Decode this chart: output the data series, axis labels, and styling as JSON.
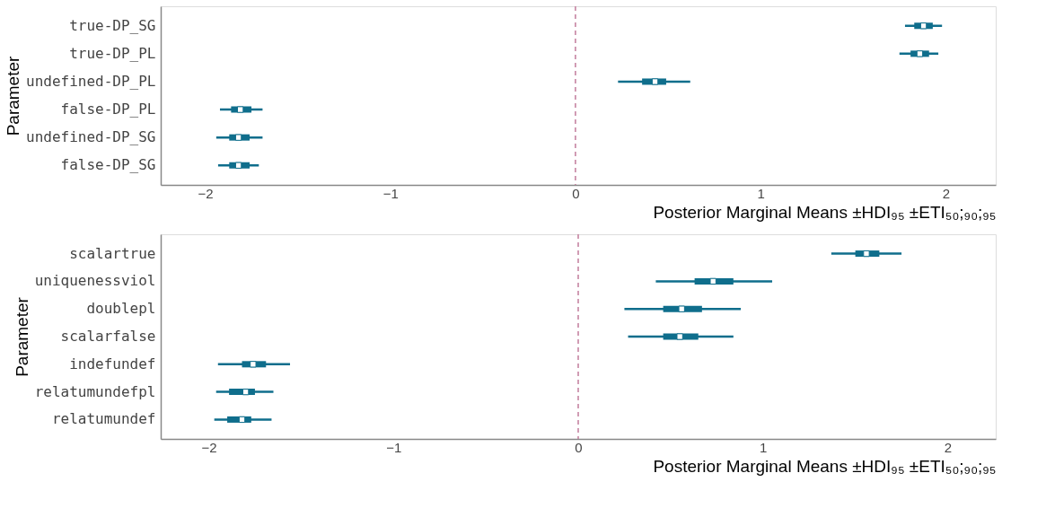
{
  "chart_data": [
    {
      "type": "box",
      "orientation": "horizontal",
      "ylabel": "Parameter",
      "xlabel": "Posterior Marginal Means ±HDI₉₅ ±ETI₅₀;₉₀;₉₅",
      "categories": [
        "true-DP_SG",
        "true-DP_PL",
        "undefined-DP_PL",
        "false-DP_PL",
        "undefined-DP_SG",
        "false-DP_SG"
      ],
      "color": "#0f6e8c",
      "grid": false,
      "xlim": [
        -2.24,
        2.27
      ],
      "xticks": [
        -2,
        -1,
        0,
        1,
        2
      ],
      "boxes": [
        {
          "low": 1.78,
          "q1": 1.83,
          "median": 1.88,
          "q3": 1.93,
          "high": 1.98
        },
        {
          "low": 1.75,
          "q1": 1.81,
          "median": 1.86,
          "q3": 1.91,
          "high": 1.96
        },
        {
          "low": 0.23,
          "q1": 0.36,
          "median": 0.43,
          "q3": 0.49,
          "high": 0.62
        },
        {
          "low": -1.92,
          "q1": -1.86,
          "median": -1.81,
          "q3": -1.75,
          "high": -1.69
        },
        {
          "low": -1.94,
          "q1": -1.87,
          "median": -1.82,
          "q3": -1.76,
          "high": -1.69
        },
        {
          "low": -1.93,
          "q1": -1.87,
          "median": -1.82,
          "q3": -1.76,
          "high": -1.71
        }
      ],
      "ref_lines": [
        {
          "axis": "x",
          "value": 0,
          "color": "#c27c9c",
          "line_style": "dashed"
        }
      ]
    },
    {
      "type": "box",
      "orientation": "horizontal",
      "ylabel": "Parameter",
      "xlabel": "Posterior Marginal Means ±HDI₉₅ ±ETI₅₀;₉₀;₉₅",
      "categories": [
        "scalartrue",
        "uniquenessviol",
        "doublepl",
        "scalarfalse",
        "indefundef",
        "relatumundefpl",
        "relatumundef"
      ],
      "color": "#0f6e8c",
      "grid": false,
      "xlim": [
        -2.26,
        2.26
      ],
      "xticks": [
        -2,
        -1,
        0,
        1,
        2
      ],
      "boxes": [
        {
          "low": 1.37,
          "q1": 1.5,
          "median": 1.56,
          "q3": 1.63,
          "high": 1.75
        },
        {
          "low": 0.42,
          "q1": 0.63,
          "median": 0.73,
          "q3": 0.84,
          "high": 1.05
        },
        {
          "low": 0.25,
          "q1": 0.46,
          "median": 0.56,
          "q3": 0.67,
          "high": 0.88
        },
        {
          "low": 0.27,
          "q1": 0.46,
          "median": 0.55,
          "q3": 0.65,
          "high": 0.84
        },
        {
          "low": -1.95,
          "q1": -1.82,
          "median": -1.76,
          "q3": -1.69,
          "high": -1.56
        },
        {
          "low": -1.96,
          "q1": -1.89,
          "median": -1.8,
          "q3": -1.75,
          "high": -1.65
        },
        {
          "low": -1.97,
          "q1": -1.9,
          "median": -1.82,
          "q3": -1.77,
          "high": -1.66
        }
      ],
      "ref_lines": [
        {
          "axis": "x",
          "value": 0,
          "color": "#c27c9c",
          "line_style": "dashed"
        }
      ]
    }
  ]
}
